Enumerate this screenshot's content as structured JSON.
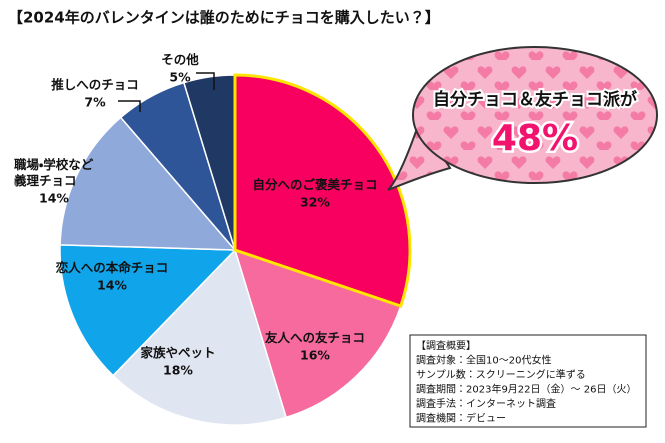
{
  "chart_data": {
    "type": "pie",
    "title": "【2024年のバレンタインは誰のためにチョコを購入したい？】",
    "categories": [
      "自分へのご褒美チョコ",
      "友人への友チョコ",
      "家族やペット",
      "恋人への本命チョコ",
      "職場・学校など\n義理チョコ",
      "推しへのチョコ",
      "その他"
    ],
    "values": [
      32,
      16,
      18,
      14,
      14,
      7,
      5
    ],
    "value_labels": [
      "32%",
      "16%",
      "18%",
      "14%",
      "14%",
      "7%",
      "5%"
    ],
    "colors": [
      "#f7005f",
      "#f66a9d",
      "#dfe5f1",
      "#10a5eb",
      "#8ea9da",
      "#2e5597",
      "#1f3864"
    ],
    "annotations": [
      "自分チョコ＆友チョコ派が",
      "48%"
    ],
    "notes": [
      "【調査概要】",
      "調査対象：全国10～20代女性",
      "サンプル数：スクリーニングに準ずる",
      "調査期間：2023年9月22日（金）～ 26日（火）",
      "調査手法：インターネット調査",
      "調査機関：デビュー"
    ]
  }
}
